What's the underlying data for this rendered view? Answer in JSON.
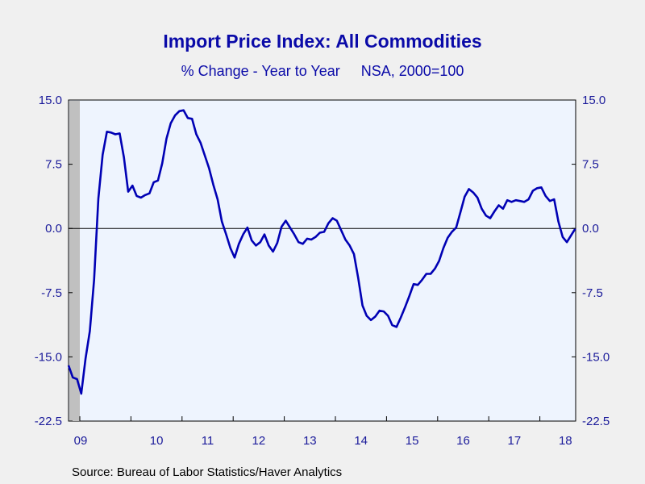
{
  "chart_data": {
    "type": "line",
    "title": "Import Price Index: All Commodities",
    "subtitle_left": "% Change - Year to Year",
    "subtitle_right": "NSA, 2000=100",
    "source": "Source:  Bureau of Labor Statistics/Haver Analytics",
    "ylim": [
      -22.5,
      15.0
    ],
    "y_ticks": [
      "15.0",
      "7.5",
      "0.0",
      "-7.5",
      "-15.0",
      "-22.5"
    ],
    "y_tick_values": [
      15.0,
      7.5,
      0.0,
      -7.5,
      -15.0,
      -22.5
    ],
    "x_tick_labels": [
      "09",
      "10",
      "11",
      "12",
      "13",
      "14",
      "15",
      "16",
      "17",
      "18"
    ],
    "grid": false,
    "zero_line": true,
    "recession_shading": {
      "from": "2009-01",
      "to": "2009-06"
    },
    "colors": {
      "line": "#0000b4",
      "plot_bg": "#eef4fe",
      "recession": "#c0c0c0",
      "text": "#0a0aa8"
    },
    "x_start": "2009-01",
    "series": [
      {
        "values": [
          -16.0,
          -17.4,
          -17.6,
          -19.3,
          -15.2,
          -12.0,
          -6.0,
          3.5,
          8.6,
          11.3,
          11.2,
          11.0,
          11.1,
          8.3,
          4.3,
          5.0,
          3.8,
          3.6,
          3.9,
          4.1,
          5.4,
          5.6,
          7.6,
          10.5,
          12.3,
          13.2,
          13.7,
          13.8,
          12.9,
          12.8,
          11.0,
          10.0,
          8.5,
          7.0,
          5.1,
          3.4,
          0.8,
          -0.7,
          -2.3,
          -3.4,
          -1.8,
          -0.7,
          0.1,
          -1.4,
          -2.0,
          -1.6,
          -0.7,
          -2.0,
          -2.7,
          -1.7,
          0.2,
          0.9,
          0.1,
          -0.7,
          -1.6,
          -1.8,
          -1.2,
          -1.3,
          -1.0,
          -0.5,
          -0.4,
          0.6,
          1.2,
          0.9,
          -0.2,
          -1.3,
          -2.0,
          -3.0,
          -5.8,
          -9.0,
          -10.2,
          -10.7,
          -10.3,
          -9.6,
          -9.7,
          -10.2,
          -11.3,
          -11.5,
          -10.4,
          -9.2,
          -7.9,
          -6.5,
          -6.6,
          -6.0,
          -5.3,
          -5.3,
          -4.7,
          -3.8,
          -2.3,
          -1.1,
          -0.4,
          0.1,
          1.9,
          3.7,
          4.6,
          4.2,
          3.6,
          2.3,
          1.5,
          1.2,
          2.0,
          2.7,
          2.3,
          3.3,
          3.1,
          3.3,
          3.2,
          3.1,
          3.4,
          4.4,
          4.7,
          4.8,
          3.8,
          3.2,
          3.4,
          0.8,
          -1.0,
          -1.6,
          -0.8,
          0.0
        ]
      }
    ]
  }
}
